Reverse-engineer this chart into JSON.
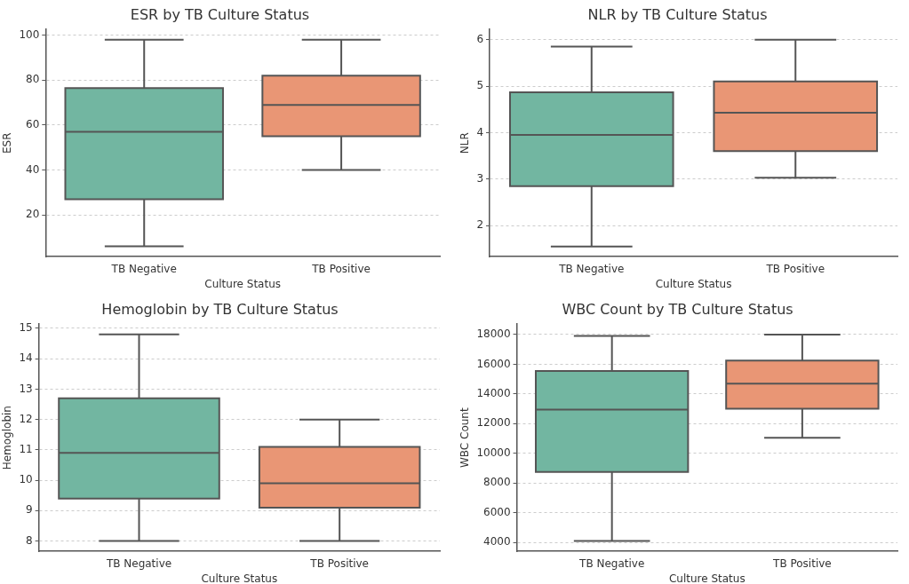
{
  "chart_data": [
    {
      "type": "box",
      "title": "ESR by TB Culture Status",
      "xlabel": "Culture Status",
      "ylabel": "ESR",
      "categories": [
        "TB Negative",
        "TB Positive"
      ],
      "colors": [
        "#72b6a1",
        "#e99675"
      ],
      "boxes": [
        {
          "low": 6,
          "q1": 27,
          "median": 57,
          "q3": 76.5,
          "high": 98
        },
        {
          "low": 40,
          "q1": 55,
          "median": 69,
          "q3": 82,
          "high": 98
        }
      ],
      "ylim": [
        1.4,
        102.6
      ],
      "yticks": [
        20,
        40,
        60,
        80,
        100
      ],
      "grid": "y"
    },
    {
      "type": "box",
      "title": "NLR by TB Culture Status",
      "xlabel": "Culture Status",
      "ylabel": "NLR",
      "categories": [
        "TB Negative",
        "TB Positive"
      ],
      "colors": [
        "#72b6a1",
        "#e99675"
      ],
      "boxes": [
        {
          "low": 1.55,
          "q1": 2.85,
          "median": 3.95,
          "q3": 4.87,
          "high": 5.85
        },
        {
          "low": 3.03,
          "q1": 3.6,
          "median": 4.43,
          "q3": 5.1,
          "high": 6.0
        }
      ],
      "ylim": [
        1.33,
        6.22
      ],
      "yticks": [
        2,
        3,
        4,
        5,
        6
      ],
      "grid": "y"
    },
    {
      "type": "box",
      "title": "Hemoglobin by TB Culture Status",
      "xlabel": "Culture Status",
      "ylabel": "Hemoglobin",
      "categories": [
        "TB Negative",
        "TB Positive"
      ],
      "colors": [
        "#72b6a1",
        "#e99675"
      ],
      "boxes": [
        {
          "low": 8,
          "q1": 9.4,
          "median": 10.9,
          "q3": 12.7,
          "high": 14.8
        },
        {
          "low": 8,
          "q1": 9.1,
          "median": 9.9,
          "q3": 11.1,
          "high": 12.0
        }
      ],
      "ylim": [
        7.66,
        15.14
      ],
      "yticks": [
        8,
        9,
        10,
        11,
        12,
        13,
        14,
        15
      ],
      "grid": "y"
    },
    {
      "type": "box",
      "title": "WBC Count by TB Culture Status",
      "xlabel": "Culture Status",
      "ylabel": "WBC Count",
      "categories": [
        "TB Negative",
        "TB Positive"
      ],
      "colors": [
        "#72b6a1",
        "#e99675"
      ],
      "boxes": [
        {
          "low": 4100,
          "q1": 8750,
          "median": 12950,
          "q3": 15550,
          "high": 17900
        },
        {
          "low": 11050,
          "q1": 13000,
          "median": 14700,
          "q3": 16250,
          "high": 18000
        }
      ],
      "ylim": [
        3400,
        18700
      ],
      "yticks": [
        4000,
        6000,
        8000,
        10000,
        12000,
        14000,
        16000,
        18000
      ],
      "grid": "y"
    }
  ]
}
